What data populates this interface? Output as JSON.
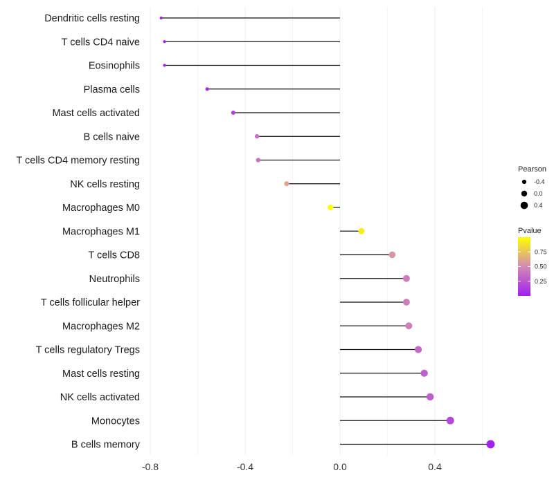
{
  "chart_data": {
    "type": "lollipop",
    "title": "",
    "xlabel": "",
    "ylabel": "",
    "xlim": [
      -0.82,
      0.66
    ],
    "xticks": [
      -0.8,
      -0.4,
      0.0,
      0.4
    ],
    "xtick_labels": [
      "-0.8",
      "-0.4",
      "0.0",
      "0.4"
    ],
    "grid": true,
    "categories": [
      "Dendritic cells resting",
      "T cells CD4 naive",
      "Eosinophils",
      "Plasma cells",
      "Mast cells activated",
      "B cells naive",
      "T cells CD4 memory resting",
      "NK cells resting",
      "Macrophages M0",
      "Macrophages M1",
      "T cells CD8",
      "Neutrophils",
      "T cells follicular helper",
      "Macrophages M2",
      "T cells regulatory  Tregs ",
      "Mast cells resting",
      "NK cells activated",
      "Monocytes",
      "B cells memory"
    ],
    "pearson": [
      -0.754,
      -0.74,
      -0.74,
      -0.56,
      -0.45,
      -0.35,
      -0.345,
      -0.225,
      -0.04,
      0.09,
      0.22,
      0.28,
      0.28,
      0.29,
      0.33,
      0.355,
      0.38,
      0.465,
      0.635
    ],
    "pvalue": [
      0.01,
      0.02,
      0.02,
      0.08,
      0.15,
      0.38,
      0.38,
      0.62,
      0.99,
      0.92,
      0.55,
      0.45,
      0.45,
      0.45,
      0.35,
      0.3,
      0.3,
      0.2,
      0.01
    ],
    "size_legend": {
      "title": "Pearson",
      "entries": [
        {
          "label": "-0.4",
          "value": -0.4
        },
        {
          "label": "0.0",
          "value": 0.0
        },
        {
          "label": "0.4",
          "value": 0.4
        }
      ]
    },
    "color_legend": {
      "title": "Pvalue",
      "ticks": [
        {
          "label": "0.75",
          "value": 0.75
        },
        {
          "label": "0.50",
          "value": 0.5
        },
        {
          "label": "0.25",
          "value": 0.25
        }
      ],
      "low_color": "#a020f0",
      "mid_color": "#d28ab4",
      "high_color": "#ffff00",
      "range": [
        0.0,
        1.0
      ]
    }
  }
}
